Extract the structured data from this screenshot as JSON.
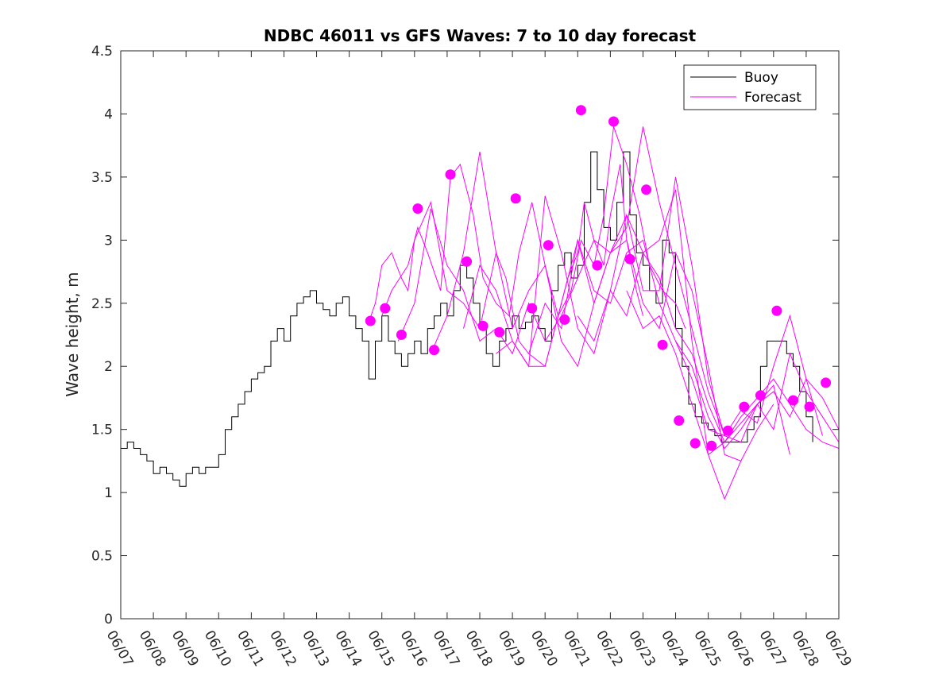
{
  "chart_data": {
    "type": "line",
    "title": "NDBC 46011 vs GFS Waves: 7 to 10 day forecast",
    "xlabel": "",
    "ylabel": "Wave height, m",
    "x_ticks": [
      "06/07",
      "06/08",
      "06/09",
      "06/10",
      "06/11",
      "06/12",
      "06/13",
      "06/14",
      "06/15",
      "06/16",
      "06/17",
      "06/18",
      "06/19",
      "06/20",
      "06/21",
      "06/22",
      "06/23",
      "06/24",
      "06/25",
      "06/26",
      "06/27",
      "06/28",
      "06/29"
    ],
    "xlim": [
      0,
      22
    ],
    "ylim": [
      0,
      4.5
    ],
    "y_ticks": [
      "0",
      "0.5",
      "1",
      "1.5",
      "2",
      "2.5",
      "3",
      "3.5",
      "4",
      "4.5"
    ],
    "grid": false,
    "legend_position": "top-right",
    "colors": {
      "buoy": "#000000",
      "forecast": "#ff00ff"
    },
    "series": [
      {
        "name": "Buoy",
        "type": "line",
        "x": [
          0,
          0.2,
          0.4,
          0.6,
          0.8,
          1.0,
          1.2,
          1.4,
          1.6,
          1.8,
          2.0,
          2.2,
          2.4,
          2.6,
          2.8,
          3.0,
          3.2,
          3.4,
          3.6,
          3.8,
          4.0,
          4.2,
          4.4,
          4.6,
          4.8,
          5.0,
          5.2,
          5.4,
          5.6,
          5.8,
          6.0,
          6.2,
          6.4,
          6.6,
          6.8,
          7.0,
          7.2,
          7.4,
          7.6,
          7.8,
          8.0,
          8.2,
          8.4,
          8.6,
          8.8,
          9.0,
          9.2,
          9.4,
          9.6,
          9.8,
          10.0,
          10.2,
          10.4,
          10.6,
          10.8,
          11.0,
          11.2,
          11.4,
          11.6,
          11.8,
          12.0,
          12.2,
          12.4,
          12.6,
          12.8,
          13.0,
          13.2,
          13.4,
          13.6,
          13.8,
          14.0,
          14.2,
          14.4,
          14.6,
          14.8,
          15.0,
          15.2,
          15.4,
          15.6,
          15.8,
          16.0,
          16.2,
          16.4,
          16.6,
          16.8,
          17.0,
          17.2,
          17.4,
          17.6,
          17.8,
          18.0,
          18.2,
          18.4,
          18.6,
          18.8,
          19.0,
          19.2,
          19.4,
          19.6,
          19.8,
          20.0,
          20.2,
          20.4,
          20.6,
          20.8,
          21.0,
          21.2
        ],
        "values": [
          1.35,
          1.4,
          1.35,
          1.3,
          1.25,
          1.15,
          1.2,
          1.15,
          1.1,
          1.05,
          1.15,
          1.2,
          1.15,
          1.2,
          1.2,
          1.3,
          1.5,
          1.6,
          1.7,
          1.8,
          1.9,
          1.95,
          2.0,
          2.2,
          2.3,
          2.2,
          2.4,
          2.5,
          2.55,
          2.6,
          2.5,
          2.45,
          2.4,
          2.5,
          2.55,
          2.4,
          2.3,
          2.2,
          1.9,
          2.2,
          2.4,
          2.2,
          2.1,
          2.0,
          2.1,
          2.2,
          2.1,
          2.3,
          2.4,
          2.5,
          2.4,
          2.6,
          2.8,
          2.7,
          2.5,
          2.3,
          2.1,
          2.0,
          2.2,
          2.3,
          2.4,
          2.3,
          2.35,
          2.4,
          2.3,
          2.2,
          2.6,
          2.8,
          2.9,
          2.7,
          2.8,
          3.3,
          3.7,
          3.4,
          3.1,
          3.0,
          3.3,
          3.7,
          3.2,
          2.9,
          2.8,
          2.6,
          2.5,
          3.0,
          2.9,
          2.3,
          2.0,
          1.7,
          1.6,
          1.55,
          1.5,
          1.45,
          1.4,
          1.4,
          1.4,
          1.4,
          1.5,
          1.6,
          2.0,
          2.2,
          2.2,
          2.2,
          2.1,
          2.0,
          1.8,
          1.6,
          1.4
        ]
      },
      {
        "name": "Forecast",
        "type": "line-group",
        "lines": [
          {
            "x": [
              7.6,
              7.8,
              8.0,
              8.3,
              8.6,
              8.8,
              9.0,
              9.5,
              10.0,
              10.5,
              11.0,
              11.5,
              11.8,
              12.2,
              12.5,
              13.0,
              13.3,
              13.7,
              14.0,
              14.2,
              14.5,
              14.8,
              15.0,
              15.3,
              15.5,
              15.8,
              16.0
            ],
            "values": [
              2.35,
              2.5,
              2.8,
              2.9,
              2.7,
              2.6,
              3.0,
              3.3,
              2.6,
              2.5,
              2.3,
              2.9,
              2.7,
              2.2,
              2.1,
              2.0,
              2.3,
              2.7,
              2.9,
              3.3,
              3.0,
              2.8,
              3.2,
              3.6,
              3.0,
              2.6,
              2.4
            ]
          },
          {
            "x": [
              8.0,
              8.3,
              8.8,
              9.1,
              9.4,
              9.8,
              10.1,
              10.4,
              10.8,
              11.1,
              11.5,
              11.9,
              12.2,
              12.6,
              13.0,
              13.4,
              13.8,
              14.1,
              14.5,
              14.8,
              15.1,
              15.5,
              15.9,
              16.2,
              16.6,
              17.0,
              17.3
            ],
            "values": [
              2.4,
              2.6,
              2.8,
              3.1,
              2.9,
              2.6,
              3.5,
              3.6,
              3.2,
              2.7,
              2.5,
              2.4,
              2.9,
              3.3,
              2.8,
              2.4,
              2.6,
              3.0,
              2.8,
              3.2,
              3.9,
              3.6,
              3.2,
              2.8,
              2.6,
              2.5,
              2.3
            ]
          },
          {
            "x": [
              8.5,
              9.0,
              9.5,
              10.0,
              10.5,
              11.0,
              11.5,
              12.0,
              12.5,
              13.0,
              13.5,
              14.0,
              14.5,
              15.0,
              15.5,
              16.0,
              16.5,
              17.0,
              17.5,
              18.0,
              18.5
            ],
            "values": [
              2.2,
              2.5,
              3.25,
              2.8,
              2.6,
              2.2,
              2.3,
              2.1,
              2.5,
              2.2,
              2.4,
              2.7,
              3.0,
              2.9,
              3.1,
              3.9,
              3.3,
              2.8,
              2.3,
              1.8,
              1.45
            ]
          },
          {
            "x": [
              9.5,
              10.0,
              10.5,
              11.0,
              11.5,
              12.0,
              12.5,
              13.0,
              13.5,
              14.0,
              14.5,
              15.0,
              15.5,
              16.0,
              16.5,
              17.0,
              17.5,
              18.0,
              18.5,
              19.0
            ],
            "values": [
              2.1,
              2.4,
              2.9,
              3.7,
              2.9,
              2.3,
              2.6,
              2.8,
              2.2,
              2.0,
              2.5,
              2.9,
              3.0,
              2.5,
              2.3,
              2.9,
              2.6,
              2.0,
              1.3,
              1.25
            ]
          },
          {
            "x": [
              10.5,
              11.0,
              11.5,
              12.0,
              12.5,
              13.0,
              13.5,
              14.0,
              14.5,
              15.0,
              15.5,
              16.0,
              16.5,
              17.0,
              17.5,
              18.0,
              18.5,
              19.0,
              19.5,
              20.0
            ],
            "values": [
              2.3,
              2.8,
              2.6,
              2.2,
              2.0,
              3.35,
              2.9,
              2.3,
              2.1,
              2.6,
              3.2,
              2.9,
              3.0,
              3.4,
              2.2,
              1.3,
              0.95,
              1.25,
              1.5,
              1.7
            ]
          },
          {
            "x": [
              11.5,
              12.0,
              12.5,
              13.0,
              13.5,
              14.0,
              14.5,
              15.0,
              15.5,
              16.0,
              16.5,
              17.0,
              17.5,
              18.0,
              18.5,
              19.0,
              19.5,
              20.0,
              20.5
            ],
            "values": [
              2.1,
              2.2,
              2.0,
              2.0,
              2.5,
              3.0,
              2.5,
              2.9,
              3.2,
              2.6,
              2.6,
              3.5,
              2.8,
              1.9,
              1.45,
              1.4,
              1.7,
              1.85,
              1.3
            ]
          },
          {
            "x": [
              12.5,
              13.0,
              13.5,
              14.0,
              14.5,
              15.0,
              15.5,
              16.0,
              16.5,
              17.0,
              17.5,
              18.0,
              18.5,
              19.0,
              19.5,
              20.0,
              20.5,
              21.0,
              21.5
            ],
            "values": [
              2.1,
              2.5,
              2.3,
              3.0,
              2.6,
              2.5,
              2.9,
              3.0,
              2.5,
              2.2,
              2.0,
              1.6,
              1.35,
              1.5,
              1.7,
              1.8,
              1.6,
              1.9,
              1.45
            ]
          },
          {
            "x": [
              14.0,
              14.5,
              15.0,
              15.5,
              16.0,
              16.5,
              17.0,
              17.5,
              18.0,
              18.5,
              19.0,
              19.5,
              20.0,
              20.5,
              21.0,
              21.5,
              22.0
            ],
            "values": [
              2.4,
              2.2,
              2.6,
              2.4,
              2.9,
              2.7,
              2.3,
              2.1,
              1.7,
              1.4,
              1.55,
              1.7,
              1.5,
              2.1,
              1.8,
              1.6,
              1.4
            ]
          },
          {
            "x": [
              15.5,
              16.0,
              16.5,
              17.0,
              17.5,
              18.0,
              18.5,
              19.0,
              19.5,
              20.0,
              20.5,
              21.0,
              21.5,
              22.0
            ],
            "values": [
              2.6,
              2.3,
              2.4,
              2.1,
              1.7,
              1.3,
              1.4,
              1.6,
              1.75,
              1.9,
              1.7,
              1.5,
              1.4,
              1.35
            ]
          },
          {
            "x": [
              17.0,
              17.5,
              18.0,
              18.5,
              19.0,
              19.5,
              20.0,
              20.5,
              21.0,
              21.5,
              22.0
            ],
            "values": [
              2.2,
              1.9,
              1.5,
              1.45,
              1.65,
              1.55,
              2.0,
              2.4,
              1.9,
              1.75,
              1.5
            ]
          }
        ]
      },
      {
        "name": "",
        "type": "scatter",
        "x": [
          7.65,
          8.1,
          8.6,
          9.1,
          9.6,
          10.1,
          10.6,
          11.1,
          11.6,
          12.1,
          12.6,
          13.1,
          13.6,
          14.1,
          14.6,
          15.1,
          15.6,
          16.1,
          16.6,
          17.1,
          17.6,
          18.1,
          18.6,
          19.1,
          19.6,
          20.1,
          20.6,
          21.1,
          21.6
        ],
        "values": [
          2.36,
          2.46,
          2.25,
          3.25,
          2.13,
          3.52,
          2.83,
          2.32,
          2.27,
          3.33,
          2.46,
          2.96,
          2.37,
          4.03,
          2.8,
          3.94,
          2.85,
          3.4,
          2.17,
          1.57,
          1.39,
          1.37,
          1.49,
          1.68,
          1.77,
          2.44,
          1.73,
          1.68,
          1.87
        ]
      }
    ]
  }
}
